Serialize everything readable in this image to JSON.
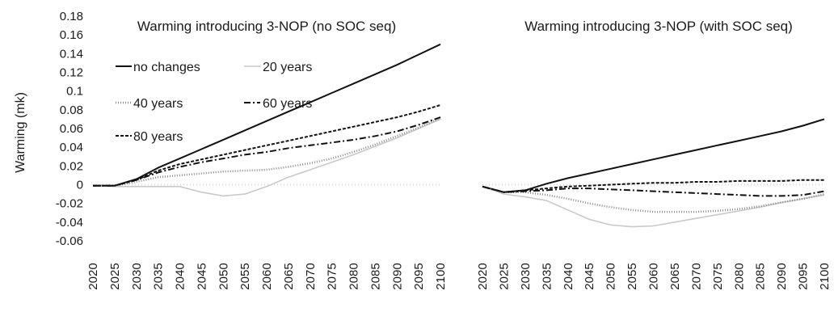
{
  "chart_data": [
    {
      "type": "line",
      "title": "Warming introducing 3-NOP (no SOC seq)",
      "ylabel": "Warming (mk)",
      "xlabel": "",
      "ylim": [
        -0.06,
        0.18
      ],
      "yticks": [
        "0.18",
        "0.16",
        "0.14",
        "0.12",
        "0.1",
        "0.08",
        "0.06",
        "0.04",
        "0.02",
        "0",
        "-0.02",
        "-0.04",
        "-0.06"
      ],
      "x": [
        "2020",
        "2025",
        "2030",
        "2035",
        "2040",
        "2045",
        "2050",
        "2055",
        "2060",
        "2065",
        "2070",
        "2075",
        "2080",
        "2085",
        "2090",
        "2095",
        "2100"
      ],
      "grid": false,
      "legend": "top-left",
      "series": [
        {
          "name": "no changes",
          "values": [
            -0.001,
            -0.001,
            0.006,
            0.018,
            0.028,
            0.038,
            0.048,
            0.058,
            0.068,
            0.078,
            0.088,
            0.098,
            0.108,
            0.118,
            0.128,
            0.139,
            0.15
          ]
        },
        {
          "name": "20 years",
          "values": [
            -0.001,
            -0.002,
            -0.002,
            -0.002,
            -0.002,
            -0.008,
            -0.012,
            -0.01,
            -0.002,
            0.008,
            0.016,
            0.024,
            0.032,
            0.041,
            0.05,
            0.06,
            0.07
          ]
        },
        {
          "name": "40 years",
          "values": [
            -0.001,
            -0.001,
            0.003,
            0.008,
            0.01,
            0.012,
            0.014,
            0.015,
            0.016,
            0.019,
            0.023,
            0.028,
            0.035,
            0.043,
            0.052,
            0.061,
            0.071
          ]
        },
        {
          "name": "60 years",
          "values": [
            -0.001,
            -0.001,
            0.005,
            0.013,
            0.019,
            0.024,
            0.028,
            0.032,
            0.035,
            0.039,
            0.042,
            0.045,
            0.048,
            0.052,
            0.057,
            0.064,
            0.072
          ]
        },
        {
          "name": "80 years",
          "values": [
            -0.001,
            -0.001,
            0.005,
            0.015,
            0.022,
            0.027,
            0.032,
            0.037,
            0.042,
            0.047,
            0.052,
            0.057,
            0.062,
            0.067,
            0.072,
            0.078,
            0.085
          ]
        }
      ]
    },
    {
      "type": "line",
      "title": "Warming introducing 3-NOP (with SOC seq)",
      "ylabel": "",
      "xlabel": "",
      "ylim": [
        -0.06,
        0.18
      ],
      "x": [
        "2020",
        "2025",
        "2030",
        "2035",
        "2040",
        "2045",
        "2050",
        "2055",
        "2060",
        "2065",
        "2070",
        "2075",
        "2080",
        "2085",
        "2090",
        "2095",
        "2100"
      ],
      "grid": false,
      "series": [
        {
          "name": "no changes",
          "values": [
            -0.002,
            -0.008,
            -0.006,
            0.001,
            0.007,
            0.012,
            0.017,
            0.022,
            0.027,
            0.032,
            0.037,
            0.042,
            0.047,
            0.052,
            0.057,
            0.063,
            0.07
          ]
        },
        {
          "name": "20 years",
          "values": [
            -0.002,
            -0.01,
            -0.013,
            -0.017,
            -0.027,
            -0.037,
            -0.043,
            -0.045,
            -0.044,
            -0.04,
            -0.036,
            -0.032,
            -0.028,
            -0.024,
            -0.019,
            -0.015,
            -0.011
          ]
        },
        {
          "name": "40 years",
          "values": [
            -0.002,
            -0.008,
            -0.008,
            -0.011,
            -0.015,
            -0.02,
            -0.024,
            -0.027,
            -0.029,
            -0.029,
            -0.029,
            -0.028,
            -0.026,
            -0.023,
            -0.019,
            -0.015,
            -0.01
          ]
        },
        {
          "name": "60 years",
          "values": [
            -0.002,
            -0.008,
            -0.007,
            -0.006,
            -0.004,
            -0.004,
            -0.005,
            -0.006,
            -0.007,
            -0.008,
            -0.009,
            -0.01,
            -0.011,
            -0.012,
            -0.012,
            -0.011,
            -0.007
          ]
        },
        {
          "name": "80 years",
          "values": [
            -0.002,
            -0.008,
            -0.006,
            -0.004,
            -0.002,
            -0.001,
            0.0,
            0.001,
            0.002,
            0.002,
            0.003,
            0.003,
            0.004,
            0.004,
            0.004,
            0.005,
            0.005
          ]
        }
      ]
    }
  ]
}
